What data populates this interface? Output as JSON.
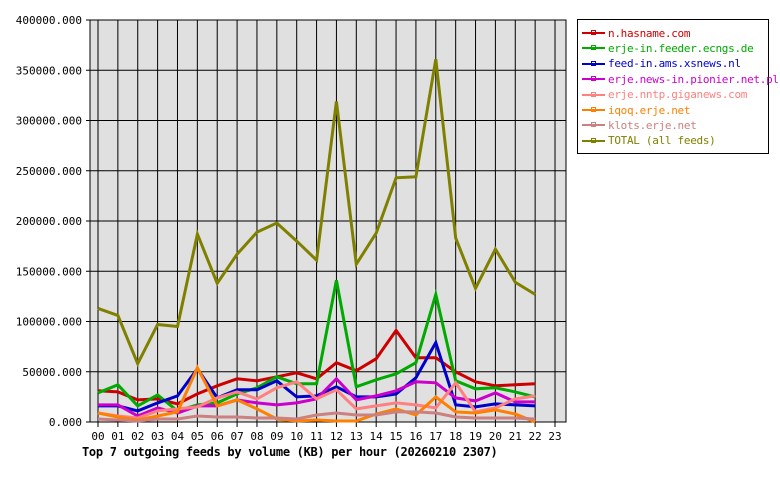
{
  "chart_data": {
    "type": "line",
    "title": "Top 7 outgoing feeds by volume (KB) per hour (20260210 2307)",
    "xlabel": "",
    "ylabel": "",
    "ylim": [
      0,
      400000
    ],
    "grid": true,
    "legend_position": "right",
    "y_ticks": [
      "0.000",
      "50000.000",
      "100000.000",
      "150000.000",
      "200000.000",
      "250000.000",
      "300000.000",
      "350000.000",
      "400000.000"
    ],
    "categories": [
      "00",
      "01",
      "02",
      "03",
      "04",
      "05",
      "06",
      "07",
      "08",
      "09",
      "10",
      "11",
      "12",
      "13",
      "14",
      "15",
      "16",
      "17",
      "18",
      "19",
      "20",
      "21",
      "22",
      "23"
    ],
    "series": [
      {
        "name": "n.hasname.com",
        "color": "#cc0000",
        "values": [
          31000,
          30000,
          22000,
          23000,
          18000,
          28000,
          36000,
          43000,
          41000,
          45000,
          49000,
          43000,
          59000,
          51000,
          63000,
          91000,
          64000,
          64000,
          50000,
          40000,
          36000,
          37000,
          38000
        ]
      },
      {
        "name": "erje-in.feeder.ecngs.de",
        "color": "#00aa00",
        "values": [
          29000,
          37000,
          16000,
          27000,
          11000,
          17000,
          19000,
          28000,
          34000,
          45000,
          38000,
          38000,
          141000,
          35000,
          42000,
          48000,
          59000,
          127000,
          41000,
          33000,
          34000,
          30000,
          25000
        ]
      },
      {
        "name": "feed-in.ams.xsnews.nl",
        "color": "#0000cc",
        "values": [
          16000,
          16000,
          11000,
          19000,
          26000,
          53000,
          24000,
          32000,
          32000,
          41000,
          25000,
          26000,
          35000,
          25000,
          25000,
          28000,
          44000,
          79000,
          17000,
          15000,
          18000,
          17000,
          16000
        ]
      },
      {
        "name": "erje.news-in.pionier.net.pl",
        "color": "#cc00cc",
        "values": [
          17000,
          17000,
          6000,
          14000,
          9000,
          16000,
          16000,
          22000,
          19000,
          17000,
          19000,
          23000,
          43000,
          22000,
          26000,
          31000,
          40000,
          39000,
          24000,
          21000,
          29000,
          20000,
          20000
        ]
      },
      {
        "name": "erje.nntp.giganews.com",
        "color": "#ff8080",
        "values": [
          9000,
          6000,
          4000,
          11000,
          13000,
          15000,
          24000,
          30000,
          23000,
          34000,
          40000,
          23000,
          32000,
          13000,
          16000,
          19000,
          17000,
          14000,
          39000,
          10000,
          14000,
          23000,
          26000
        ]
      },
      {
        "name": "iqoq.erje.net",
        "color": "#ff8000",
        "values": [
          9000,
          5000,
          2000,
          6000,
          10000,
          54000,
          16000,
          22000,
          13000,
          3000,
          1000,
          2000,
          1000,
          1000,
          8000,
          13000,
          7000,
          25000,
          10000,
          9000,
          12000,
          8000,
          0
        ]
      },
      {
        "name": "klots.erje.net",
        "color": "#cc8080",
        "values": [
          3000,
          2000,
          1000,
          3000,
          3000,
          6000,
          5000,
          5000,
          4000,
          4000,
          3000,
          7000,
          9000,
          7000,
          7000,
          10000,
          10000,
          9000,
          5000,
          4000,
          4000,
          4000,
          3000
        ]
      },
      {
        "name": "TOTAL (all feeds)",
        "color": "#808000",
        "values": [
          113000,
          106000,
          58000,
          97000,
          95000,
          187000,
          138000,
          167000,
          189000,
          198000,
          180000,
          161000,
          319000,
          157000,
          188000,
          243000,
          244000,
          361000,
          183000,
          133000,
          172000,
          139000,
          127000
        ]
      }
    ]
  },
  "legend": {
    "items": [
      {
        "label": "n.hasname.com",
        "color": "#cc0000"
      },
      {
        "label": "erje-in.feeder.ecngs.de",
        "color": "#00aa00"
      },
      {
        "label": "feed-in.ams.xsnews.nl",
        "color": "#0000cc"
      },
      {
        "label": "erje.news-in.pionier.net.pl",
        "color": "#cc00cc"
      },
      {
        "label": "erje.nntp.giganews.com",
        "color": "#ff8080"
      },
      {
        "label": "iqoq.erje.net",
        "color": "#ff8000"
      },
      {
        "label": "klots.erje.net",
        "color": "#cc8080"
      },
      {
        "label": "TOTAL (all feeds)",
        "color": "#808000"
      }
    ]
  }
}
